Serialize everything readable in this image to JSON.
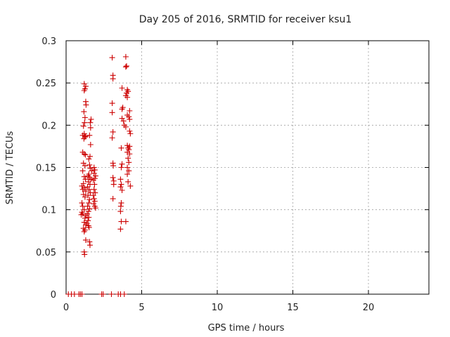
{
  "chart_data": {
    "type": "scatter",
    "title": "Day 205 of 2016, SRMTID for receiver ksu1",
    "xlabel": "GPS time / hours",
    "ylabel": "SRMTID / TECUs",
    "xlim": [
      0,
      24
    ],
    "ylim": [
      0,
      0.3
    ],
    "xticks": [
      0,
      5,
      10,
      15,
      20
    ],
    "xtick_labels": [
      "0",
      "5",
      "10",
      "15",
      "20"
    ],
    "yticks": [
      0,
      0.05,
      0.1,
      0.15,
      0.2,
      0.25,
      0.3
    ],
    "ytick_labels": [
      "0",
      "0.05",
      "0.1",
      "0.15",
      "0.2",
      "0.25",
      "0.3"
    ],
    "grid": true,
    "marker": "+",
    "color": "#cc0000",
    "series": [
      {
        "name": "SRMTID",
        "points": [
          [
            0.15,
            0
          ],
          [
            0.35,
            0
          ],
          [
            0.55,
            0
          ],
          [
            0.85,
            0
          ],
          [
            0.95,
            0
          ],
          [
            1.05,
            0
          ],
          [
            2.35,
            0
          ],
          [
            2.45,
            0
          ],
          [
            3.0,
            0
          ],
          [
            3.45,
            0
          ],
          [
            3.6,
            0
          ],
          [
            3.85,
            0
          ],
          [
            1.2,
            0.249
          ],
          [
            1.3,
            0.246
          ],
          [
            1.2,
            0.241
          ],
          [
            1.25,
            0.243
          ],
          [
            1.3,
            0.228
          ],
          [
            1.32,
            0.224
          ],
          [
            1.18,
            0.216
          ],
          [
            1.25,
            0.209
          ],
          [
            1.22,
            0.203
          ],
          [
            1.15,
            0.199
          ],
          [
            1.2,
            0.19
          ],
          [
            1.1,
            0.188
          ],
          [
            1.3,
            0.187
          ],
          [
            1.25,
            0.186
          ],
          [
            1.18,
            0.184
          ],
          [
            1.1,
            0.168
          ],
          [
            1.2,
            0.166
          ],
          [
            1.28,
            0.165
          ],
          [
            1.15,
            0.155
          ],
          [
            1.25,
            0.152
          ],
          [
            1.1,
            0.146
          ],
          [
            1.2,
            0.139
          ],
          [
            1.28,
            0.136
          ],
          [
            1.15,
            0.131
          ],
          [
            1.05,
            0.128
          ],
          [
            1.2,
            0.126
          ],
          [
            1.1,
            0.124
          ],
          [
            1.3,
            0.122
          ],
          [
            1.15,
            0.118
          ],
          [
            1.25,
            0.115
          ],
          [
            1.05,
            0.108
          ],
          [
            1.1,
            0.104
          ],
          [
            1.2,
            0.1
          ],
          [
            1.05,
            0.097
          ],
          [
            1.1,
            0.095
          ],
          [
            1.0,
            0.094
          ],
          [
            1.3,
            0.093
          ],
          [
            1.25,
            0.09
          ],
          [
            1.2,
            0.085
          ],
          [
            1.3,
            0.082
          ],
          [
            1.15,
            0.078
          ],
          [
            1.25,
            0.076
          ],
          [
            1.2,
            0.074
          ],
          [
            1.3,
            0.064
          ],
          [
            1.2,
            0.05
          ],
          [
            1.22,
            0.047
          ],
          [
            1.65,
            0.207
          ],
          [
            1.6,
            0.203
          ],
          [
            1.62,
            0.197
          ],
          [
            1.55,
            0.188
          ],
          [
            1.62,
            0.177
          ],
          [
            1.5,
            0.16
          ],
          [
            1.58,
            0.163
          ],
          [
            1.55,
            0.153
          ],
          [
            1.6,
            0.149
          ],
          [
            1.7,
            0.146
          ],
          [
            1.5,
            0.142
          ],
          [
            1.45,
            0.14
          ],
          [
            1.55,
            0.138
          ],
          [
            1.65,
            0.136
          ],
          [
            1.48,
            0.133
          ],
          [
            1.58,
            0.13
          ],
          [
            1.42,
            0.127
          ],
          [
            1.52,
            0.124
          ],
          [
            1.6,
            0.12
          ],
          [
            1.45,
            0.117
          ],
          [
            1.55,
            0.112
          ],
          [
            1.5,
            0.108
          ],
          [
            1.42,
            0.104
          ],
          [
            1.55,
            0.101
          ],
          [
            1.48,
            0.098
          ],
          [
            1.4,
            0.095
          ],
          [
            1.5,
            0.091
          ],
          [
            1.45,
            0.087
          ],
          [
            1.38,
            0.084
          ],
          [
            1.48,
            0.081
          ],
          [
            1.52,
            0.079
          ],
          [
            1.55,
            0.062
          ],
          [
            1.58,
            0.058
          ],
          [
            1.85,
            0.15
          ],
          [
            1.9,
            0.147
          ],
          [
            1.85,
            0.143
          ],
          [
            1.95,
            0.14
          ],
          [
            1.9,
            0.137
          ],
          [
            1.8,
            0.135
          ],
          [
            1.88,
            0.13
          ],
          [
            1.85,
            0.124
          ],
          [
            1.92,
            0.12
          ],
          [
            1.8,
            0.117
          ],
          [
            1.85,
            0.113
          ],
          [
            1.9,
            0.11
          ],
          [
            1.82,
            0.107
          ],
          [
            1.9,
            0.104
          ],
          [
            1.95,
            0.102
          ],
          [
            3.05,
            0.28
          ],
          [
            3.1,
            0.259
          ],
          [
            3.1,
            0.255
          ],
          [
            3.05,
            0.226
          ],
          [
            3.05,
            0.215
          ],
          [
            3.1,
            0.192
          ],
          [
            3.05,
            0.185
          ],
          [
            3.1,
            0.155
          ],
          [
            3.12,
            0.152
          ],
          [
            3.1,
            0.138
          ],
          [
            3.15,
            0.134
          ],
          [
            3.15,
            0.13
          ],
          [
            3.1,
            0.113
          ],
          [
            3.7,
            0.244
          ],
          [
            3.75,
            0.221
          ],
          [
            3.7,
            0.219
          ],
          [
            3.7,
            0.208
          ],
          [
            3.8,
            0.205
          ],
          [
            3.85,
            0.2
          ],
          [
            3.65,
            0.173
          ],
          [
            3.7,
            0.154
          ],
          [
            3.65,
            0.15
          ],
          [
            3.6,
            0.136
          ],
          [
            3.65,
            0.13
          ],
          [
            3.6,
            0.127
          ],
          [
            3.7,
            0.123
          ],
          [
            3.65,
            0.108
          ],
          [
            3.62,
            0.104
          ],
          [
            3.6,
            0.098
          ],
          [
            3.65,
            0.086
          ],
          [
            3.6,
            0.077
          ],
          [
            3.95,
            0.281
          ],
          [
            4.0,
            0.27
          ],
          [
            3.95,
            0.269
          ],
          [
            4.05,
            0.242
          ],
          [
            4.0,
            0.238
          ],
          [
            4.1,
            0.24
          ],
          [
            3.95,
            0.235
          ],
          [
            4.05,
            0.233
          ],
          [
            4.2,
            0.217
          ],
          [
            4.05,
            0.212
          ],
          [
            4.15,
            0.21
          ],
          [
            4.2,
            0.207
          ],
          [
            3.95,
            0.198
          ],
          [
            4.2,
            0.193
          ],
          [
            4.25,
            0.19
          ],
          [
            4.05,
            0.176
          ],
          [
            4.2,
            0.175
          ],
          [
            4.1,
            0.173
          ],
          [
            4.15,
            0.171
          ],
          [
            4.05,
            0.168
          ],
          [
            4.2,
            0.166
          ],
          [
            4.1,
            0.161
          ],
          [
            4.15,
            0.156
          ],
          [
            4.05,
            0.15
          ],
          [
            4.15,
            0.146
          ],
          [
            4.05,
            0.142
          ],
          [
            4.1,
            0.133
          ],
          [
            4.25,
            0.128
          ],
          [
            3.95,
            0.086
          ]
        ]
      }
    ]
  }
}
